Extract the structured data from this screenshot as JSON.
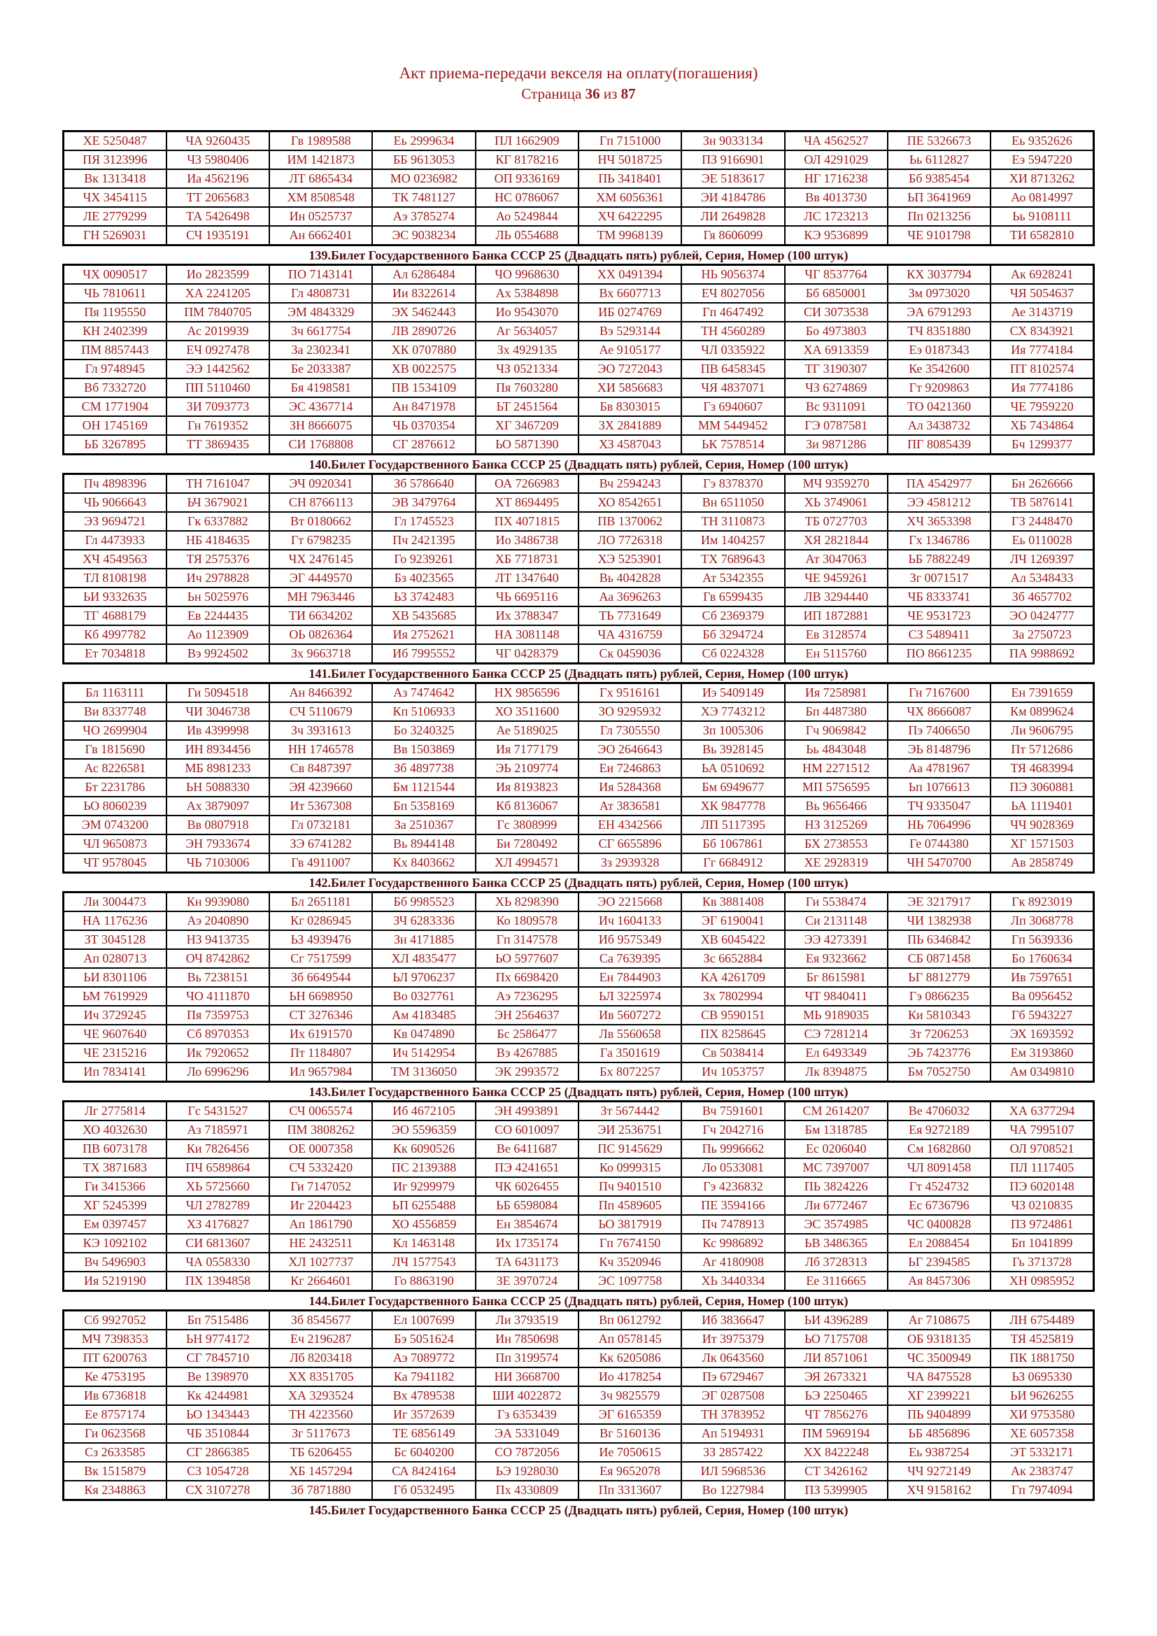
{
  "title": "Акт приема-передачи векселя на оплату(погашения)",
  "subtitle": {
    "label": "Страница ",
    "page": "36",
    "of": " из ",
    "total": "87"
  },
  "colors": {
    "serial_text": "#9e1c1c",
    "caption_text": "#4f0d0d",
    "title_text": "#9b1616",
    "border": "#000000"
  },
  "blocks": [
    {
      "type": "table",
      "rows": [
        [
          "ХЕ 5250487",
          "ЧА 9260435",
          "Гв 1989588",
          "Еь 2999634",
          "ПЛ 1662909",
          "Гп 7151000",
          "Зн 9033134",
          "ЧА 4562527",
          "ПЕ 5326673",
          "Еь 9352626"
        ],
        [
          "ПЯ 3123996",
          "ЧЗ 5980406",
          "ИМ 1421873",
          "ББ 9613053",
          "КГ 8178216",
          "НЧ 5018725",
          "ПЗ 9166901",
          "ОЛ 4291029",
          "Ьь 6112827",
          "Еэ 5947220"
        ],
        [
          "Вк 1313418",
          "Иа 4562196",
          "ЛТ 6865434",
          "МО 0236982",
          "ОП 9336169",
          "ПЬ 3418401",
          "ЭЕ 5183617",
          "НГ 1716238",
          "Бб 9385454",
          "ХИ 8713262"
        ],
        [
          "ЧХ 3454115",
          "ТТ 2065683",
          "ХМ 8508548",
          "ТК 7481127",
          "НС 0786067",
          "ХМ 6056361",
          "ЭИ 4184786",
          "Вв 4013730",
          "ЬП 3641969",
          "Ао 0814997"
        ],
        [
          "ЛЕ 2779299",
          "ТА 5426498",
          "Ин 0525737",
          "Аэ 3785274",
          "Ао 5249844",
          "ХЧ 6422295",
          "ЛИ 2649828",
          "ЛС 1723213",
          "Пп 0213256",
          "Ьь 9108111"
        ],
        [
          "ГН 5269031",
          "СЧ 1935191",
          "Ан 6662401",
          "ЭС 9038234",
          "ЛЬ 0554688",
          "ТМ 9968139",
          "Гя 8606099",
          "КЭ 9536899",
          "ЧЕ 9101798",
          "ТИ 6582810"
        ]
      ]
    },
    {
      "type": "caption",
      "text": "139.Билет Государственного Банка СССР 25 (Двадцать пять) рублей, Серия, Номер (100 штук)"
    },
    {
      "type": "table",
      "rows": [
        [
          "ЧХ 0090517",
          "Ио 2823599",
          "ПО 7143141",
          "Ал 6286484",
          "ЧО 9968630",
          "ХХ 0491394",
          "НЬ 9056374",
          "ЧГ 8537764",
          "КХ 3037794",
          "Ак 6928241"
        ],
        [
          "ЧЬ 7810611",
          "ХА 2241205",
          "Гл 4808731",
          "Ии 8322614",
          "Ах 5384898",
          "Вх 6607713",
          "ЕЧ 8027056",
          "Бб 6850001",
          "Зм 0973020",
          "ЧЯ 5054637"
        ],
        [
          "Пя 1195550",
          "ПМ 7840705",
          "ЭМ 4843329",
          "ЭХ 5462443",
          "Ио 9543070",
          "ИБ 0274769",
          "Гп 4647492",
          "СИ 3073538",
          "ЭА 6791293",
          "Ае 3143719"
        ],
        [
          "КН 2402399",
          "Ас 2019939",
          "Зч 6617754",
          "ЛВ 2890726",
          "Аг 5634057",
          "Вэ 5293144",
          "ТН 4560289",
          "Бо 4973803",
          "ТЧ 8351880",
          "СХ 8343921"
        ],
        [
          "ПМ 8857443",
          "ЕЧ 0927478",
          "За 2302341",
          "ХК 0707880",
          "Зх 4929135",
          "Ае 9105177",
          "ЧЛ 0335922",
          "ХА 6913359",
          "Еэ 0187343",
          "Ия 7774184"
        ],
        [
          "Гл 9748945",
          "ЭЭ 1442562",
          "Бе 2033387",
          "ХВ 0022575",
          "ЧЗ 0521334",
          "ЭО 7272043",
          "ПВ 6458345",
          "ТГ 3190307",
          "Ке 3542600",
          "ПТ 8102574"
        ],
        [
          "Вб 7332720",
          "ПП 5110460",
          "Бя 4198581",
          "ПВ 1534109",
          "Пя 7603280",
          "ХИ 5856683",
          "ЧЯ 4837071",
          "ЧЗ 6274869",
          "Гт 9209863",
          "Ия 7774186"
        ],
        [
          "СМ 1771904",
          "ЗИ 7093773",
          "ЭС 4367714",
          "Ан 8471978",
          "ЬТ 2451564",
          "Бв 8303015",
          "Гз 6940607",
          "Вс 9311091",
          "ТО 0421360",
          "ЧЕ 7959220"
        ],
        [
          "ОН 1745169",
          "Гн 7619352",
          "ЗН 8666075",
          "ЧЬ 0370354",
          "ХГ 3467209",
          "ЗХ 2841889",
          "ММ 5449452",
          "ГЭ 0787581",
          "Ал 3438732",
          "ХБ 7434864"
        ],
        [
          "ЬБ 3267895",
          "ТТ 3869435",
          "СИ 1768808",
          "СГ 2876612",
          "ЬО 5871390",
          "ХЗ 4587043",
          "ЬК 7578514",
          "Зи 9871286",
          "ПГ 8085439",
          "Бч 1299377"
        ]
      ]
    },
    {
      "type": "caption",
      "text": "140.Билет Государственного Банка СССР 25 (Двадцать пять) рублей, Серия, Номер (100 штук)"
    },
    {
      "type": "table",
      "rows": [
        [
          "Пч 4898396",
          "ТН 7161047",
          "ЭЧ 0920341",
          "Зб 5786640",
          "ОА 7266983",
          "Вч 2594243",
          "Гэ 8378370",
          "МЧ 9359270",
          "ПА 4542977",
          "Бн 2626666"
        ],
        [
          "ЧЬ 9066643",
          "ЬЧ 3679021",
          "СН 8766113",
          "ЭВ 3479764",
          "ХТ 8694495",
          "ХО 8542651",
          "Вн 6511050",
          "ХЬ 3749061",
          "ЭЭ 4581212",
          "ТВ 5876141"
        ],
        [
          "ЭЗ 9694721",
          "Гк 6337882",
          "Вт 0180662",
          "Гл 1745523",
          "ПХ 4071815",
          "ПВ 1370062",
          "ТН 3110873",
          "ТБ 0727703",
          "ХЧ 3653398",
          "ГЗ 2448470"
        ],
        [
          "Гл 4473933",
          "НБ 4184635",
          "Гт 6798235",
          "Пч 2421395",
          "Ио 3486738",
          "ЛО 7726318",
          "Им 1404257",
          "ХЯ 2821844",
          "Гх 1346786",
          "Еь 0110028"
        ],
        [
          "ХЧ 4549563",
          "ТЯ 2575376",
          "ЧХ 2476145",
          "Го 9239261",
          "ХБ 7718731",
          "ХЭ 5253901",
          "ТХ 7689643",
          "Ат 3047063",
          "ЬБ 7882249",
          "ЛЧ 1269397"
        ],
        [
          "ТЛ 8108198",
          "Ич 2978828",
          "ЭГ 4449570",
          "Бз 4023565",
          "ЛТ 1347640",
          "Вь 4042828",
          "Ат 5342355",
          "ЧЕ 9459261",
          "Зг 0071517",
          "Ал 5348433"
        ],
        [
          "ЬИ 9332635",
          "Ьн 5025976",
          "МН 7963446",
          "ЬЗ 3742483",
          "ЧЬ 6695116",
          "Аа 3696263",
          "Гв 6599435",
          "ЛВ 3294440",
          "ЧБ 8333741",
          "Зб 4657702"
        ],
        [
          "ТГ 4688179",
          "Ев 2244435",
          "ТИ 6634202",
          "ХВ 5435685",
          "Их 3788347",
          "ТЬ 7731649",
          "Сб 2369379",
          "ИП 1872881",
          "ЧЕ 9531723",
          "ЭО 0424777"
        ],
        [
          "Кб 4997782",
          "Ао 1123909",
          "ОЬ 0826364",
          "Ия 2752621",
          "НА 3081148",
          "ЧА 4316759",
          "Бб 3294724",
          "Ев 3128574",
          "СЗ 5489411",
          "За 2750723"
        ],
        [
          "Ет 7034818",
          "Вэ 9924502",
          "Зх 9663718",
          "Иб 7995552",
          "ЧГ 0428379",
          "Ск 0459036",
          "Сб 0224328",
          "Ен 5115760",
          "ПО 8661235",
          "ПА 9988692"
        ]
      ]
    },
    {
      "type": "caption",
      "text": "141.Билет Государственного Банка СССР 25 (Двадцать пять) рублей, Серия, Номер (100 штук)"
    },
    {
      "type": "table",
      "rows": [
        [
          "Бл 1163111",
          "Ги 5094518",
          "Ан 8466392",
          "Аз 7474642",
          "НХ 9856596",
          "Гх 9516161",
          "Иэ 5409149",
          "Ия 7258981",
          "Гн 7167600",
          "Ен 7391659"
        ],
        [
          "Ви 8337748",
          "ЧИ 3046738",
          "СЧ 5110679",
          "Кп 5106933",
          "ХО 3511600",
          "ЗО 9295932",
          "ХЭ 7743212",
          "Бп 4487380",
          "ЧХ 8666087",
          "Км 0899624"
        ],
        [
          "ЧО 2699904",
          "Ив 4399998",
          "Зч 3931613",
          "Бо 3240325",
          "Ае 5189025",
          "Гл 7305550",
          "Зп 1005306",
          "Гч 9069842",
          "Пэ 7406650",
          "Ли 9606795"
        ],
        [
          "Гв 1815690",
          "ИН 8934456",
          "НН 1746578",
          "Вв 1503869",
          "Ия 7177179",
          "ЭО 2646643",
          "Вь 3928145",
          "Ьь 4843048",
          "ЭЬ 8148796",
          "Пт 5712686"
        ],
        [
          "Ас 8226581",
          "МБ 8981233",
          "Св 8487397",
          "Зб 4897738",
          "ЭЬ 2109774",
          "Еи 7246863",
          "ЬА 0510692",
          "НМ 2271512",
          "Аа 4781967",
          "ТЯ 4683994"
        ],
        [
          "Бт 2231786",
          "ЬН 5088330",
          "ЭЯ 4239660",
          "Бм 1121544",
          "Ия 8193823",
          "Ия 5284368",
          "Бм 6949677",
          "МП 5756595",
          "Ьп 1076613",
          "ПЭ 3060881"
        ],
        [
          "ЬО 8060239",
          "Ах 3879097",
          "Ит 5367308",
          "Бп 5358169",
          "Кб 8136067",
          "Ат 3836581",
          "ХК 9847778",
          "Вь 9656466",
          "ТЧ 9335047",
          "ЬА 1119401"
        ],
        [
          "ЭМ 0743200",
          "Вв 0807918",
          "Гл 0732181",
          "За 2510367",
          "Гс 3808999",
          "ЕН 4342566",
          "ЛП 5117395",
          "НЗ 3125269",
          "НЬ 7064996",
          "ЧЧ 9028369"
        ],
        [
          "ЧЛ 9650873",
          "ЭН 7933674",
          "ЗЭ 6741282",
          "Вь 8944148",
          "Би 7280492",
          "СГ 6655896",
          "Бб 1067861",
          "БХ 2738553",
          "Ге 0744380",
          "ХГ 1571503"
        ],
        [
          "ЧТ 9578045",
          "ЧЬ 7103006",
          "Гв 4911007",
          "Кх 8403662",
          "ХЛ 4994571",
          "Зз 2939328",
          "Гг 6684912",
          "ХЕ 2928319",
          "ЧН 5470700",
          "Ав 2858749"
        ]
      ]
    },
    {
      "type": "caption",
      "text": "142.Билет Государственного Банка СССР 25 (Двадцать пять) рублей, Серия, Номер (100 штук)"
    },
    {
      "type": "table",
      "rows": [
        [
          "Ли 3004473",
          "Кн 9939080",
          "Бл 2651181",
          "Бб 9985523",
          "ХЬ 8298390",
          "ЭО 2215668",
          "Кв 3881408",
          "Ги 5538474",
          "ЭЕ 3217917",
          "Гк 8923019"
        ],
        [
          "НА 1176236",
          "Аэ 2040890",
          "Кг 0286945",
          "ЗЧ 6283336",
          "Ко 1809578",
          "Ич 1604133",
          "ЭГ 6190041",
          "Си 2131148",
          "ЧИ 1382938",
          "Лп 3068778"
        ],
        [
          "ЗТ 3045128",
          "НЗ 9413735",
          "ЬЗ 4939476",
          "Зн 4171885",
          "Гп 3147578",
          "Иб 9575349",
          "ХВ 6045422",
          "ЭЭ 4273391",
          "ПЬ 6346842",
          "Гп 5639336"
        ],
        [
          "Ап 0280713",
          "ОЧ 8742862",
          "Сг 7517599",
          "ХЛ 4835477",
          "ЬО 5977607",
          "Са 7639395",
          "Зс 6652884",
          "Ея 9323662",
          "СБ 0871458",
          "Бо 1760634"
        ],
        [
          "ЬИ 8301106",
          "Вь 7238151",
          "Зб 6649544",
          "ЬЛ 9706237",
          "Пх 6698420",
          "Ен 7844903",
          "КА 4261709",
          "Бг 8615981",
          "ЬГ 8812779",
          "Ив 7597651"
        ],
        [
          "ЬМ 7619929",
          "ЧО 4111870",
          "ЬН 6698950",
          "Во 0327761",
          "Аэ 7236295",
          "ЬЛ 3225974",
          "Зх 7802994",
          "ЧТ 9840411",
          "Гэ 0866235",
          "Ва 0956452"
        ],
        [
          "Ич 3729245",
          "Пя 7359753",
          "СТ 3276346",
          "Ам 4183485",
          "ЭН 2564637",
          "Ив 5607272",
          "СВ 9590151",
          "МЬ 9189035",
          "Ки 5810343",
          "Гб 5943227"
        ],
        [
          "ЧЕ 9607640",
          "Сб 8970353",
          "Их 6191570",
          "Кв 0474890",
          "Бс 2586477",
          "Лв 5560658",
          "ПХ 8258645",
          "СЭ 7281214",
          "Зт 7206253",
          "ЭХ 1693592"
        ],
        [
          "ЧЕ 2315216",
          "Ик 7920652",
          "Пт 1184807",
          "Ич 5142954",
          "Вэ 4267885",
          "Га 3501619",
          "Св 5038414",
          "Ел 6493349",
          "ЭЬ 7423776",
          "Ем 3193860"
        ],
        [
          "Ип 7834141",
          "Ло 6996296",
          "Ил 9657984",
          "ТМ 3136050",
          "ЭК 2993572",
          "Бх 8072257",
          "Ич 1053757",
          "Лк 8394875",
          "Бм 7052750",
          "Ам 0349810"
        ]
      ]
    },
    {
      "type": "caption",
      "text": "143.Билет Государственного Банка СССР 25 (Двадцать пять) рублей, Серия, Номер (100 штук)"
    },
    {
      "type": "table",
      "rows": [
        [
          "Лг 2775814",
          "Гс 5431527",
          "СЧ 0065574",
          "Иб 4672105",
          "ЭН 4993891",
          "Зт 5674442",
          "Вч 7591601",
          "СМ 2614207",
          "Ве 4706032",
          "ХА 6377294"
        ],
        [
          "ХО 4032630",
          "Аз 7185971",
          "ПМ 3808262",
          "ЭО 5596359",
          "СО 6010097",
          "ЭИ 2536751",
          "Гч 2042716",
          "Бм 1318785",
          "Ея 9272189",
          "ЧА 7995107"
        ],
        [
          "ПВ 6073178",
          "Ки 7826456",
          "ОЕ 0007358",
          "Кк 6090526",
          "Ве 6411687",
          "ПС 9145629",
          "Пь 9996662",
          "Ес 0206040",
          "См 1682860",
          "ОЛ 9708521"
        ],
        [
          "ТХ 3871683",
          "ПЧ 6589864",
          "СЧ 5332420",
          "ПС 2139388",
          "ПЭ 4241651",
          "Ко 0999315",
          "Ло 0533081",
          "МС 7397007",
          "ЧЛ 8091458",
          "ПЛ 1117405"
        ],
        [
          "Ги 3415366",
          "ХЬ 5725660",
          "Ги 7147052",
          "Иг 9299979",
          "ЧК 6026455",
          "Пч 9401510",
          "Гэ 4236832",
          "ПЬ 3824226",
          "Гт 4524732",
          "ПЭ 6020148"
        ],
        [
          "ХГ 5245399",
          "ЧЛ 2782789",
          "Иг 2204423",
          "ЬП 6255488",
          "ЬБ 6598084",
          "Пп 4589605",
          "ПЕ 3594166",
          "Ли 6772467",
          "Ес 6736796",
          "ЧЗ 0210835"
        ],
        [
          "Ем 0397457",
          "ХЗ 4176827",
          "Ап 1861790",
          "ХО 4556859",
          "Ен 3854674",
          "ЬО 3817919",
          "Пч 7478913",
          "ЭС 3574985",
          "ЧС 0400828",
          "ПЗ 9724861"
        ],
        [
          "КЭ 1092102",
          "СИ 6813607",
          "НЕ 2432511",
          "Кл 1463148",
          "Их 1735174",
          "Гп 7674150",
          "Кс 9986892",
          "ЬВ 3486365",
          "Ел 2088454",
          "Бп 1041899"
        ],
        [
          "Вч 5496903",
          "ЧА 0558330",
          "ХЛ 1027737",
          "ЛЧ 1577543",
          "ТА 6431173",
          "Кч 3520946",
          "Аг 4180908",
          "Лб 3728313",
          "ЬГ 2394585",
          "Гь 3713728"
        ],
        [
          "Ия 5219190",
          "ПХ 1394858",
          "Кг 2664601",
          "Го 8863190",
          "ЗЕ 3970724",
          "ЭС 1097758",
          "ХЬ 3440334",
          "Ее 3116665",
          "Ая 8457306",
          "ХН 0985952"
        ]
      ]
    },
    {
      "type": "caption",
      "text": "144.Билет Государственного Банка СССР 25 (Двадцать пять) рублей, Серия, Номер (100 штук)"
    },
    {
      "type": "table",
      "rows": [
        [
          "Сб 9927052",
          "Бп 7515486",
          "Зб 8545677",
          "Ел 1007699",
          "Ли 3793519",
          "Вп 0612792",
          "Иб 3836647",
          "ЬИ 4396289",
          "Аг 7108675",
          "ЛН 6754489"
        ],
        [
          "МЧ 7398353",
          "ЬН 9774172",
          "Еч 2196287",
          "Бэ 5051624",
          "Ин 7850698",
          "Ап 0578145",
          "Ит 3975379",
          "ЬО 7175708",
          "ОБ 9318135",
          "ТЯ 4525819"
        ],
        [
          "ПТ 6200763",
          "СГ 7845710",
          "Лб 8203418",
          "Аэ 7089772",
          "Пп 3199574",
          "Кк 6205086",
          "Лк 0643560",
          "ЛИ 8571061",
          "ЧС 3500949",
          "ПК 1881750"
        ],
        [
          "Ке 4753195",
          "Ве 1398970",
          "ХХ 8351705",
          "Ка 7941182",
          "НИ 3668700",
          "Ио 4178254",
          "Пэ 6729467",
          "ЭЯ 2673321",
          "ЧА 8475528",
          "ЬЗ 0695330"
        ],
        [
          "Ив 6736818",
          "Кк 4244981",
          "ХА 3293524",
          "Вх 4789538",
          "ШИ 4022872",
          "Зч 9825579",
          "ЭГ 0287508",
          "ЬЭ 2250465",
          "ХГ 2399221",
          "ЬИ 9626255"
        ],
        [
          "Ее 8757174",
          "ЬО 1343443",
          "ТН 4223560",
          "Иг 3572639",
          "Гз 6353439",
          "ЭГ 6165359",
          "ТН 3783952",
          "ЧТ 7856276",
          "ПЬ 9404899",
          "ХИ 9753580"
        ],
        [
          "Ги 0623568",
          "ЧБ 3510844",
          "Зг 5117673",
          "ТЕ 6856149",
          "ЭА 5331049",
          "Вг 5160136",
          "Ап 5194931",
          "ПМ 5969194",
          "ЬБ 4856896",
          "ХЕ 6057358"
        ],
        [
          "Сз 2633585",
          "СГ 2866385",
          "ТБ 6206455",
          "Бс 6040200",
          "СО 7872056",
          "Ие 7050615",
          "ЗЗ 2857422",
          "ХХ 8422248",
          "Еь 9387254",
          "ЭТ 5332171"
        ],
        [
          "Вк 1515879",
          "СЗ 1054728",
          "ХБ 1457294",
          "СА 8424164",
          "ЬЭ 1928030",
          "Ея 9652078",
          "ИЛ 5968536",
          "СТ 3426162",
          "ЧЧ 9272149",
          "Ак 2383747"
        ],
        [
          "Кя 2348863",
          "СХ 3107278",
          "Зб 7871880",
          "Гб 0532495",
          "Пх 4330809",
          "Пп 3313607",
          "Во 1227984",
          "ПЗ 5399905",
          "ХЧ 9158162",
          "Гп 7974094"
        ]
      ]
    },
    {
      "type": "caption",
      "text": "145.Билет Государственного Банка СССР 25 (Двадцать пять) рублей, Серия, Номер (100 штук)"
    }
  ]
}
